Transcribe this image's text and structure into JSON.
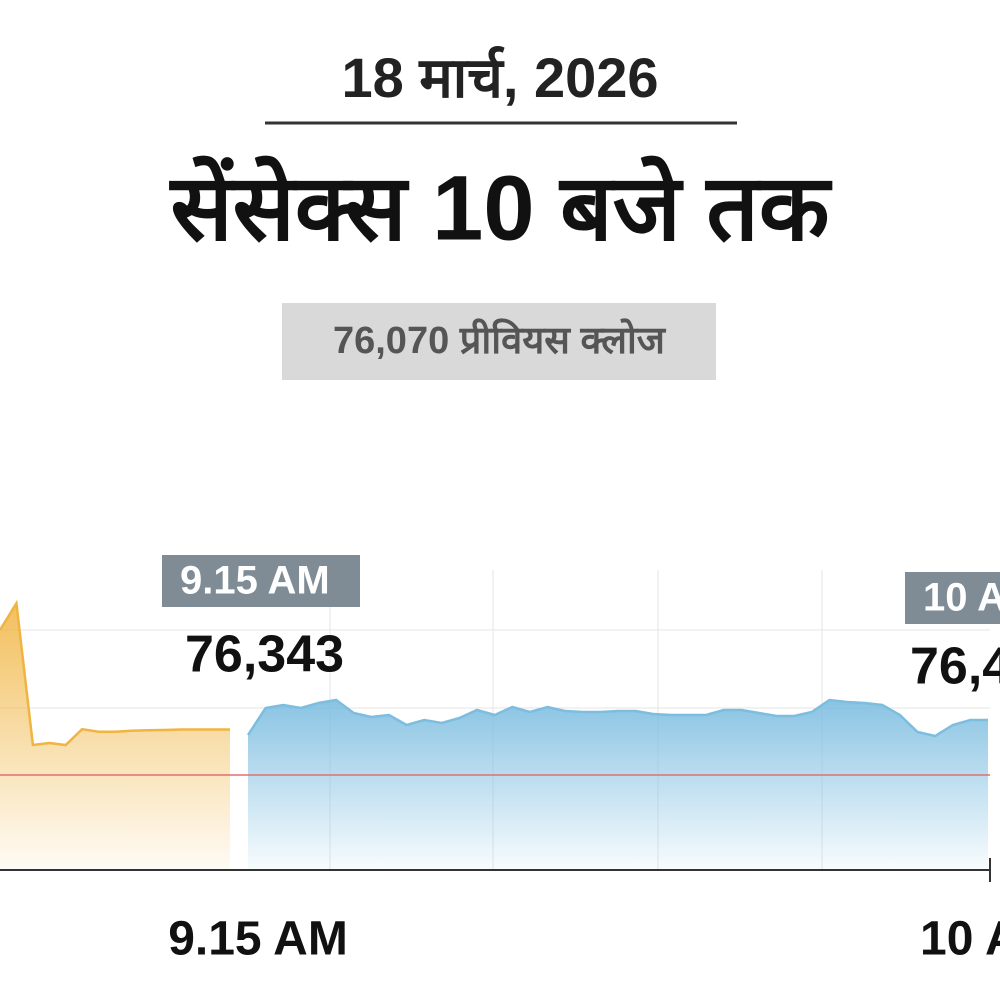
{
  "chart_data": {
    "type": "area",
    "date": "18 मार्च, 2026",
    "title": "सेंसेक्स 10 बजे तक",
    "subtitle": "76,070 प्रीवियस क्लोज",
    "previous_close": 76070,
    "ylim": [
      75500,
      77300
    ],
    "xticks": [
      "9.15 AM",
      "10 A"
    ],
    "callouts": [
      {
        "time": "9.15 AM",
        "value": "76,343"
      },
      {
        "time": "10 A",
        "value": "76,4"
      }
    ],
    "series": [
      {
        "color": "#f0b440",
        "values": [
          76940,
          77100,
          76250,
          76262,
          76250,
          76345,
          76330,
          76330,
          76335,
          76338,
          76340,
          76343,
          76343,
          76343,
          76343
        ]
      },
      {
        "color": "#7cbde0",
        "values": [
          76310,
          76472,
          76490,
          76472,
          76502,
          76520,
          76442,
          76418,
          76430,
          76370,
          76400,
          76382,
          76412,
          76460,
          76430,
          76478,
          76448,
          76478,
          76454,
          76448,
          76448,
          76454,
          76454,
          76436,
          76430,
          76430,
          76430,
          76460,
          76460,
          76442,
          76424,
          76424,
          76448,
          76520,
          76508,
          76502,
          76490,
          76430,
          76328,
          76304,
          76370,
          76400,
          76400
        ]
      }
    ]
  }
}
